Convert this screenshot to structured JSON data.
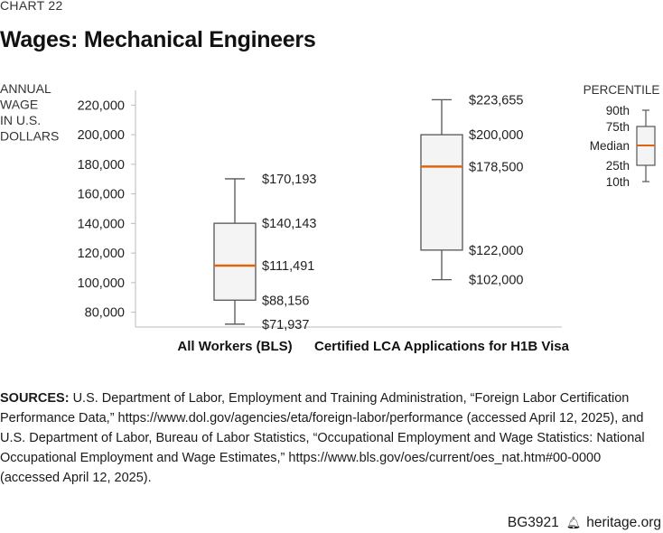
{
  "chart_label": "CHART 22",
  "title": "Wages: Mechanical Engineers",
  "chart_data": {
    "type": "box",
    "ylabel_lines": [
      "ANNUAL",
      "WAGE",
      "IN U.S.",
      "DOLLARS"
    ],
    "ylim": [
      70000,
      230000
    ],
    "yticks": [
      80000,
      100000,
      120000,
      140000,
      160000,
      180000,
      200000,
      220000
    ],
    "ytick_labels": [
      "80,000",
      "100,000",
      "120,000",
      "140,000",
      "160,000",
      "180,000",
      "200,000",
      "220,000"
    ],
    "series": [
      {
        "category": "All Workers (BLS)",
        "p10": 71937,
        "p25": 88156,
        "median": 111491,
        "p75": 140143,
        "p90": 170193,
        "labels": {
          "p10": "$71,937",
          "p25": "$88,156",
          "median": "$111,491",
          "p75": "$140,143",
          "p90": "$170,193"
        }
      },
      {
        "category": "Certified LCA Applications for H1B Visa",
        "p10": 102000,
        "p25": 122000,
        "median": 178500,
        "p75": 200000,
        "p90": 223655,
        "labels": {
          "p10": "$102,000",
          "p25": "$122,000",
          "median": "$178,500",
          "p75": "$200,000",
          "p90": "$223,655"
        }
      }
    ],
    "legend": {
      "title": "PERCENTILE",
      "items": [
        "90th",
        "75th",
        "Median",
        "25th",
        "10th"
      ]
    },
    "colors": {
      "box_fill": "#f4f4f4",
      "box_stroke": "#555555",
      "median": "#e0640f",
      "axis": "#bbbbbb"
    }
  },
  "sources": {
    "lead": "SOURCES:",
    "text": "U.S. Department of Labor, Employment and Training Administration, “Foreign Labor Certification Performance Data,” https://www.dol.gov/agencies/eta/foreign-labor/performance (accessed April 12, 2025), and U.S. Department of Labor, Bureau of Labor Statistics, “Occupational Employment and Wage Statistics: National Occupational Employment and Wage Estimates,” https://www.bls.gov/oes/current/oes_nat.htm#00-0000 (accessed April 12, 2025)."
  },
  "footer": {
    "code": "BG3921",
    "site": "heritage.org"
  }
}
